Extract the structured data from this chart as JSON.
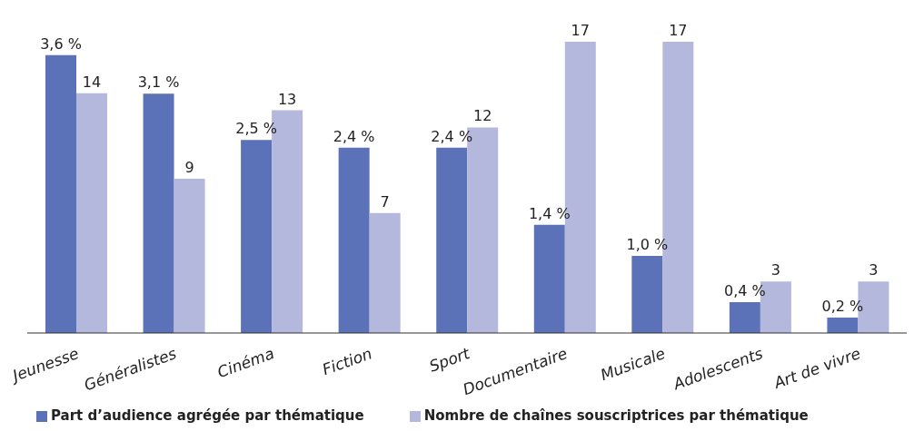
{
  "chart_data": {
    "type": "bar",
    "categories": [
      "Jeunesse",
      "Généralistes",
      "Cinéma",
      "Fiction",
      "Sport",
      "Documentaire",
      "Musicale",
      "Adolescents",
      "Art de vivre"
    ],
    "series": [
      {
        "name": "Part d’audience agrégée par thématique",
        "color": "#5b72b8",
        "values": [
          3.6,
          3.1,
          2.5,
          2.4,
          2.4,
          1.4,
          1.0,
          0.4,
          0.2
        ],
        "value_labels": [
          "3,6 %",
          "3,1 %",
          "2,5 %",
          "2,4 %",
          "2,4 %",
          "1,4 %",
          "1,0 %",
          "0,4 %",
          "0,2 %"
        ]
      },
      {
        "name": "Nombre de chaînes souscriptrices par thématique",
        "color": "#b3b8dc",
        "axis": "y2",
        "values": [
          14,
          9,
          13,
          7,
          12,
          17,
          17,
          3,
          3
        ],
        "value_labels": [
          "14",
          "9",
          "13",
          "7",
          "12",
          "17",
          "17",
          "3",
          "3"
        ]
      }
    ],
    "legend": "bottom left",
    "grid": false
  }
}
